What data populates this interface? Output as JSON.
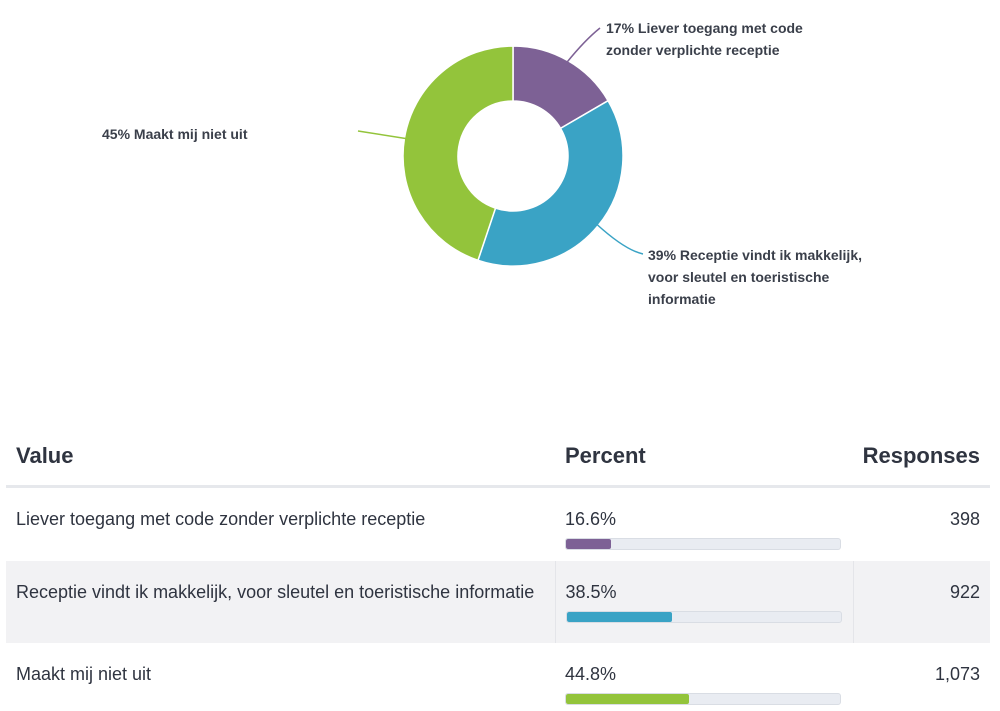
{
  "chart_data": {
    "type": "pie",
    "variant": "donut",
    "slices": [
      {
        "name": "Liever toegang met code zonder verplichte receptie",
        "percent": 16.6,
        "responses": 398,
        "color": "#7d6195",
        "label": "17% Liever toegang met code zonder verplichte receptie"
      },
      {
        "name": "Receptie vindt ik makkelijk, voor sleutel en toeristische informatie",
        "percent": 38.5,
        "responses": 922,
        "color": "#3aa3c5",
        "label": "39% Receptie vindt ik makkelijk, voor sleutel en toeristische informatie"
      },
      {
        "name": "Maakt mij niet uit",
        "percent": 44.8,
        "responses": 1073,
        "color": "#93c43b",
        "label": "45% Maakt mij niet uit"
      }
    ]
  },
  "table": {
    "headers": {
      "value": "Value",
      "percent": "Percent",
      "responses": "Responses"
    },
    "rows": [
      {
        "value": "Liever toegang met code zonder verplichte receptie",
        "percent_text": "16.6%",
        "responses": "398"
      },
      {
        "value": "Receptie vindt ik makkelijk, voor sleutel en toeristische informatie",
        "percent_text": "38.5%",
        "responses": "922"
      },
      {
        "value": "Maakt mij niet uit",
        "percent_text": "44.8%",
        "responses": "1,073"
      }
    ]
  }
}
